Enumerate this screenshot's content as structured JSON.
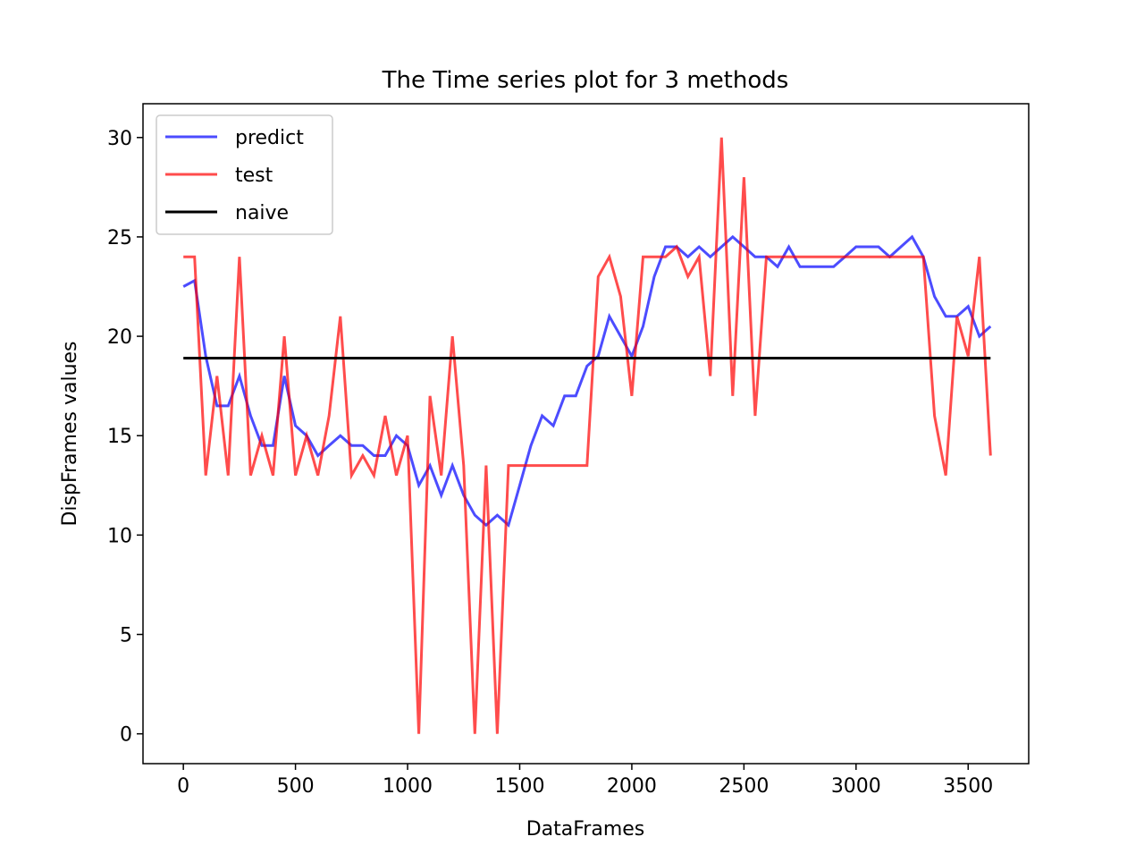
{
  "chart_data": {
    "type": "line",
    "title": "The Time series plot for 3 methods",
    "x_label": "DataFrames",
    "y_label": "DispFrames values",
    "x": [
      0,
      50,
      100,
      150,
      200,
      250,
      300,
      350,
      400,
      450,
      500,
      550,
      600,
      650,
      700,
      750,
      800,
      850,
      900,
      950,
      1000,
      1050,
      1100,
      1150,
      1200,
      1250,
      1300,
      1350,
      1400,
      1450,
      1500,
      1550,
      1600,
      1650,
      1700,
      1750,
      1800,
      1850,
      1900,
      1950,
      2000,
      2050,
      2100,
      2150,
      2200,
      2250,
      2300,
      2350,
      2400,
      2450,
      2500,
      2550,
      2600,
      2650,
      2700,
      2750,
      2800,
      2850,
      2900,
      2950,
      3000,
      3050,
      3100,
      3150,
      3200,
      3250,
      3300,
      3350,
      3400,
      3450,
      3500,
      3550,
      3600
    ],
    "series": [
      {
        "name": "predict",
        "color": "#0000ff",
        "opacity": 0.7,
        "values": [
          22.5,
          22.8,
          19,
          16.5,
          16.5,
          18,
          16,
          14.5,
          14.5,
          18,
          15.5,
          15,
          14,
          14.5,
          15,
          14.5,
          14.5,
          14,
          14,
          15,
          14.5,
          12.5,
          13.5,
          12,
          13.5,
          12,
          11,
          10.5,
          11,
          10.5,
          12.5,
          14.5,
          16,
          15.5,
          17,
          17,
          18.5,
          19,
          21,
          20,
          19,
          20.5,
          23,
          24.5,
          24.5,
          24,
          24.5,
          24,
          24.5,
          25,
          24.5,
          24,
          24,
          23.5,
          24.5,
          23.5,
          23.5,
          23.5,
          23.5,
          24,
          24.5,
          24.5,
          24.5,
          24,
          24.5,
          25,
          24,
          22,
          21,
          21,
          21.5,
          20,
          20.5
        ]
      },
      {
        "name": "test",
        "color": "#ff0000",
        "opacity": 0.7,
        "values": [
          24,
          24,
          13,
          18,
          13,
          24,
          13,
          15,
          13,
          20,
          13,
          15,
          13,
          16,
          21,
          13,
          14,
          13,
          16,
          13,
          15,
          0,
          17,
          13,
          20,
          13.5,
          0,
          13.5,
          0,
          13.5,
          13.5,
          13.5,
          13.5,
          13.5,
          13.5,
          13.5,
          13.5,
          23,
          24,
          22,
          17,
          24,
          24,
          24,
          24.5,
          23,
          24,
          18,
          30,
          17,
          28,
          16,
          24,
          24,
          24,
          24,
          24,
          24,
          24,
          24,
          24,
          24,
          24,
          24,
          24,
          24,
          24,
          16,
          13,
          21,
          19,
          24,
          14
        ]
      },
      {
        "name": "naive",
        "color": "#000000",
        "opacity": 1,
        "values": [
          18.9,
          18.9,
          18.9,
          18.9,
          18.9,
          18.9,
          18.9,
          18.9,
          18.9,
          18.9,
          18.9,
          18.9,
          18.9,
          18.9,
          18.9,
          18.9,
          18.9,
          18.9,
          18.9,
          18.9,
          18.9,
          18.9,
          18.9,
          18.9,
          18.9,
          18.9,
          18.9,
          18.9,
          18.9,
          18.9,
          18.9,
          18.9,
          18.9,
          18.9,
          18.9,
          18.9,
          18.9,
          18.9,
          18.9,
          18.9,
          18.9,
          18.9,
          18.9,
          18.9,
          18.9,
          18.9,
          18.9,
          18.9,
          18.9,
          18.9,
          18.9,
          18.9,
          18.9,
          18.9,
          18.9,
          18.9,
          18.9,
          18.9,
          18.9,
          18.9,
          18.9,
          18.9,
          18.9,
          18.9,
          18.9,
          18.9,
          18.9,
          18.9,
          18.9,
          18.9,
          18.9,
          18.9,
          18.9
        ]
      }
    ],
    "xlim": [
      -180,
      3770
    ],
    "ylim": [
      -1.5,
      31.7
    ],
    "xticks": [
      0,
      500,
      1000,
      1500,
      2000,
      2500,
      3000,
      3500
    ],
    "yticks": [
      0,
      5,
      10,
      15,
      20,
      25,
      30
    ],
    "legend": "upper left"
  }
}
